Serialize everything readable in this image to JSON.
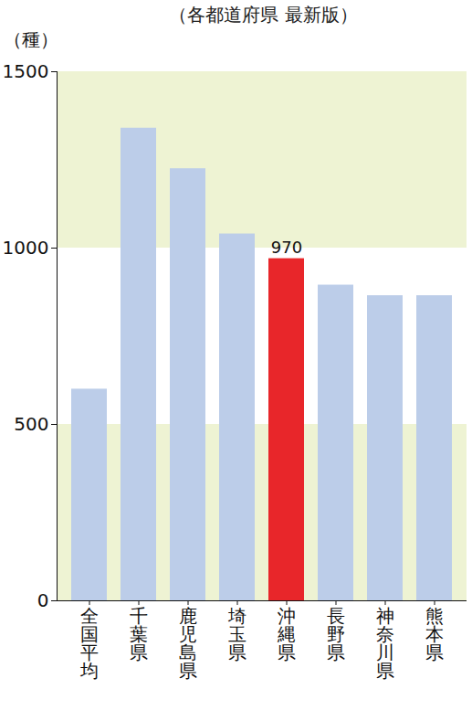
{
  "chart_data": {
    "type": "bar",
    "title": "（各都道府県 最新版）",
    "y_label": "（種）",
    "categories": [
      "全国平均",
      "千葉県",
      "鹿児島県",
      "埼玉県",
      "沖縄県",
      "長野県",
      "神奈川県",
      "熊本県"
    ],
    "values": [
      600,
      1340,
      1225,
      1040,
      970,
      895,
      865,
      865
    ],
    "colors": [
      "#bccde9",
      "#bccde9",
      "#bccde9",
      "#bccde9",
      "#e8262a",
      "#bccde9",
      "#bccde9",
      "#bccde9"
    ],
    "ylim": [
      0,
      1500
    ],
    "yticks": [
      0,
      500,
      1000,
      1500
    ],
    "annotations": [
      {
        "x": "沖縄県",
        "y": 970,
        "text": "970"
      }
    ]
  }
}
